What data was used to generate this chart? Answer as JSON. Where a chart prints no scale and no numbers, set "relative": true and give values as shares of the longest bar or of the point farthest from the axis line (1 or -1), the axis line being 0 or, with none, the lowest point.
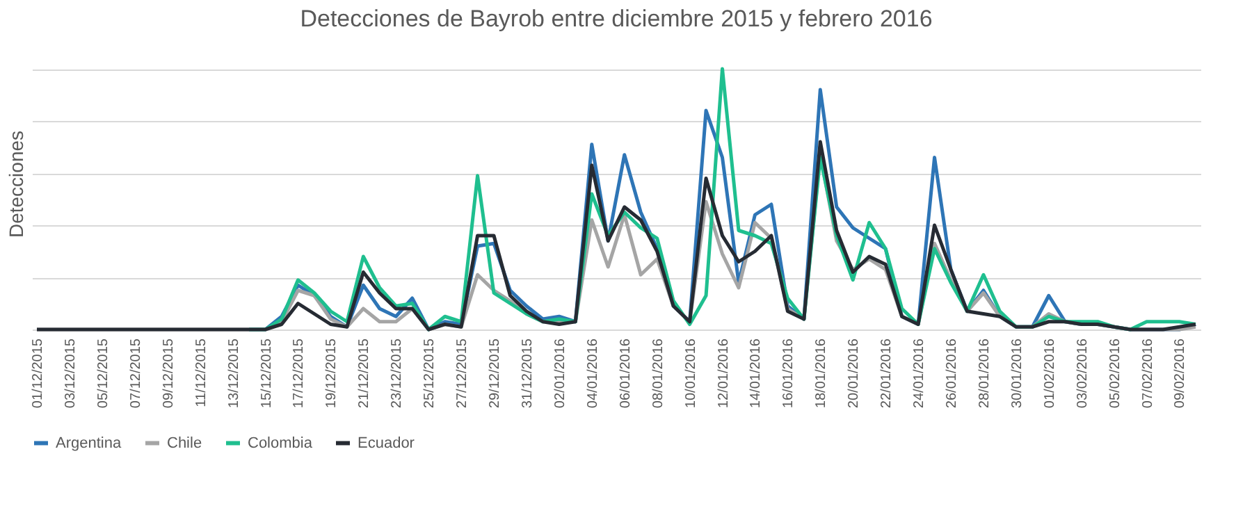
{
  "chart_data": {
    "type": "line",
    "title": "Detecciones de Bayrob entre diciembre 2015 y febrero 2016",
    "ylabel": "Detecciones",
    "relative": true,
    "grid": "y",
    "legend": "bottom",
    "marker": "none",
    "line_style": "solid",
    "categories": [
      "01/12/2015",
      null,
      "03/12/2015",
      null,
      "05/12/2015",
      null,
      "07/12/2015",
      null,
      "09/12/2015",
      null,
      "11/12/2015",
      null,
      "13/12/2015",
      null,
      "15/12/2015",
      null,
      "17/12/2015",
      null,
      "19/12/2015",
      null,
      "21/12/2015",
      null,
      "23/12/2015",
      null,
      "25/12/2015",
      null,
      "27/12/2015",
      null,
      "29/12/2015",
      null,
      "31/12/2015",
      null,
      "02/01/2016",
      null,
      "04/01/2016",
      null,
      "06/01/2016",
      null,
      "08/01/2016",
      null,
      "10/01/2016",
      null,
      "12/01/2016",
      null,
      "14/01/2016",
      null,
      "16/01/2016",
      null,
      "18/01/2016",
      null,
      "20/01/2016",
      null,
      "22/01/2016",
      null,
      "24/01/2016",
      null,
      "26/01/2016",
      null,
      "28/01/2016",
      null,
      "30/01/2016",
      null,
      "01/02/2016",
      null,
      "03/02/2016",
      null,
      "05/02/2016",
      null,
      "07/02/2016",
      null,
      "09/02/2016",
      null
    ],
    "series": [
      {
        "name": "Argentina",
        "color": "#2e75b6",
        "values": [
          null,
          null,
          null,
          null,
          null,
          null,
          null,
          null,
          null,
          null,
          null,
          null,
          null,
          0,
          0,
          0.05,
          0.17,
          0.13,
          0.05,
          0.01,
          0.17,
          0.08,
          0.05,
          0.12,
          0,
          0.03,
          0.02,
          0.32,
          0.33,
          0.15,
          0.09,
          0.04,
          0.05,
          0.03,
          0.71,
          0.34,
          0.67,
          0.45,
          0.31,
          0.09,
          0.03,
          0.84,
          0.66,
          0.18,
          0.44,
          0.48,
          0.09,
          0.04,
          0.92,
          0.47,
          0.39,
          0.35,
          0.31,
          0.05,
          0.02,
          0.66,
          0.23,
          0.07,
          0.15,
          0.05,
          0.01,
          0.01,
          0.13,
          0.03,
          0.02,
          0.02,
          0.01,
          0,
          0,
          0,
          0,
          0.02
        ]
      },
      {
        "name": "Chile",
        "color": "#a5a5a5",
        "values": [
          0,
          0,
          0,
          0,
          0,
          0,
          0,
          0,
          0,
          0,
          0,
          0,
          0,
          0,
          0,
          0.03,
          0.15,
          0.13,
          0.04,
          0.01,
          0.08,
          0.03,
          0.03,
          0.08,
          0,
          0.02,
          0.01,
          0.21,
          0.15,
          0.11,
          0.06,
          0.03,
          0.03,
          0.03,
          0.42,
          0.24,
          0.44,
          0.21,
          0.27,
          0.09,
          0.03,
          0.49,
          0.29,
          0.16,
          0.41,
          0.35,
          0.08,
          0.04,
          0.67,
          0.34,
          0.23,
          0.27,
          0.23,
          0.05,
          0.02,
          0.33,
          0.19,
          0.07,
          0.14,
          0.05,
          0.01,
          0.01,
          0.06,
          0.03,
          0.02,
          0.02,
          0.01,
          0,
          0,
          0,
          0,
          0.01
        ]
      },
      {
        "name": "Colombia",
        "color": "#1fbf8f",
        "values": [
          null,
          null,
          null,
          null,
          null,
          null,
          null,
          null,
          null,
          null,
          null,
          null,
          null,
          0,
          0,
          0.04,
          0.19,
          0.14,
          0.07,
          0.03,
          0.28,
          0.16,
          0.09,
          0.1,
          0,
          0.05,
          0.03,
          0.59,
          0.14,
          0.1,
          0.06,
          0.03,
          0.04,
          0.03,
          0.52,
          0.36,
          0.45,
          0.39,
          0.35,
          0.11,
          0.02,
          0.13,
          1,
          0.38,
          0.36,
          0.33,
          0.12,
          0.04,
          0.66,
          0.36,
          0.19,
          0.41,
          0.31,
          0.08,
          0.02,
          0.31,
          0.18,
          0.07,
          0.21,
          0.07,
          0.01,
          0.01,
          0.05,
          0.03,
          0.03,
          0.03,
          0.01,
          0,
          0.03,
          0.03,
          0.03,
          0.02
        ]
      },
      {
        "name": "Ecuador",
        "color": "#262b33",
        "values": [
          0,
          0,
          0,
          0,
          0,
          0,
          0,
          0,
          0,
          0,
          0,
          0,
          0,
          0,
          0,
          0.02,
          0.1,
          0.06,
          0.02,
          0.01,
          0.22,
          0.14,
          0.08,
          0.08,
          0,
          0.02,
          0.01,
          0.36,
          0.36,
          0.13,
          0.07,
          0.03,
          0.02,
          0.03,
          0.63,
          0.34,
          0.47,
          0.42,
          0.3,
          0.09,
          0.03,
          0.58,
          0.36,
          0.26,
          0.3,
          0.36,
          0.07,
          0.04,
          0.72,
          0.38,
          0.22,
          0.28,
          0.25,
          0.05,
          0.02,
          0.4,
          0.23,
          0.07,
          0.06,
          0.05,
          0.01,
          0.01,
          0.03,
          0.03,
          0.02,
          0.02,
          0.01,
          0,
          0,
          0,
          0.01,
          0.02
        ]
      }
    ]
  }
}
